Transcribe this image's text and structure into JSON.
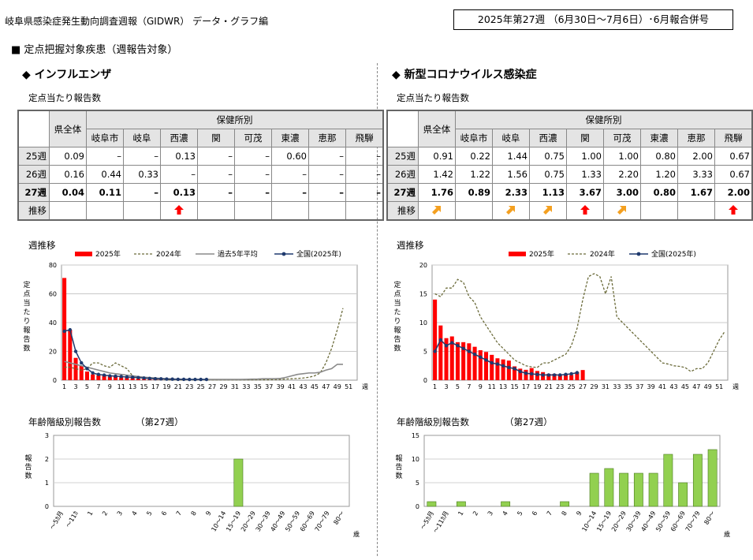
{
  "header": {
    "doc_title": "岐阜県感染症発生動向調査週報（GIDWR） データ・グラフ編",
    "week_label": "2025年第27週 （6月30日～7月6日）･6月報合併号",
    "section_title": "■ 定点把握対象疾患（週報告対象）"
  },
  "influenza": {
    "title": "◆ インフルエンザ",
    "table_title": "定点当たり報告数",
    "table": {
      "header_all": "県全体",
      "header_group": "保健所別",
      "columns": [
        "岐阜市",
        "岐阜",
        "西濃",
        "関",
        "可茂",
        "東濃",
        "恵那",
        "飛騨"
      ],
      "rows": [
        {
          "label": "25週",
          "total": "0.09",
          "values": [
            "–",
            "–",
            "0.13",
            "–",
            "–",
            "0.60",
            "–",
            "–"
          ]
        },
        {
          "label": "26週",
          "total": "0.16",
          "values": [
            "0.44",
            "0.33",
            "–",
            "–",
            "–",
            "–",
            "–",
            "–"
          ]
        },
        {
          "label": "27週",
          "total": "0.04",
          "values": [
            "0.11",
            "–",
            "0.13",
            "–",
            "–",
            "–",
            "–",
            "–"
          ]
        }
      ],
      "trend_label": "推移",
      "trend": [
        "",
        "",
        "",
        "up",
        "",
        "",
        "",
        "",
        ""
      ]
    },
    "weekly_title": "週推移",
    "weekly_chart": {
      "type": "bar",
      "ylabel": "定点当たり報告数",
      "xlabel": "週",
      "ylim": [
        0,
        80
      ],
      "yticks": [
        0,
        20,
        40,
        60,
        80
      ],
      "xticks": [
        1,
        3,
        5,
        7,
        9,
        11,
        13,
        15,
        17,
        19,
        21,
        23,
        25,
        27,
        29,
        31,
        33,
        35,
        37,
        39,
        41,
        43,
        45,
        47,
        49,
        51
      ],
      "legend": [
        "2025年",
        "2024年",
        "過去5年平均",
        "全国(2025年)"
      ],
      "bars_2025": [
        71.0,
        35.0,
        15.5,
        10.0,
        6.0,
        4.0,
        3.5,
        3.0,
        2.5,
        2.5,
        2.0,
        1.8,
        1.5,
        1.0,
        0.8,
        0.6,
        0.5,
        0.4,
        0.3,
        0.2,
        0.2,
        0.2,
        0.2,
        0.1,
        0.16,
        0.04
      ],
      "line_2024": [
        9,
        9,
        8,
        7,
        8,
        12,
        12,
        10,
        9,
        12,
        10,
        8,
        3,
        2,
        1.5,
        1,
        0.8,
        0.5,
        0.3,
        0.2,
        0.2,
        0.2,
        0.2,
        0.2,
        0.2,
        0.2,
        0.2,
        0.2,
        0.2,
        0.2,
        0.2,
        0.2,
        0.2,
        0.2,
        0.3,
        0.3,
        0.3,
        0.4,
        0.5,
        0.8,
        1,
        1.2,
        1.5,
        2,
        3,
        5,
        12,
        22,
        35,
        50
      ],
      "line_avg": [
        13,
        12,
        11,
        10,
        9,
        8,
        7,
        6,
        5,
        4.5,
        4,
        3.5,
        3,
        2.5,
        2,
        1.8,
        1.5,
        1.2,
        1,
        0.8,
        0.7,
        0.6,
        0.5,
        0.5,
        0.5,
        0.5,
        0.5,
        0.5,
        0.5,
        0.5,
        0.5,
        0.5,
        0.6,
        0.7,
        0.8,
        1,
        1,
        1,
        1.2,
        2,
        3,
        4,
        4.5,
        5,
        5,
        5.5,
        7,
        8,
        11,
        11
      ],
      "line_national": [
        34,
        35,
        20,
        12,
        8,
        5,
        4,
        3.5,
        3,
        2.8,
        2.5,
        2.2,
        2,
        1.8,
        1.5,
        1.2,
        1,
        0.9,
        0.8,
        0.7,
        0.6,
        0.6,
        0.5,
        0.5,
        0.5,
        0.5
      ]
    },
    "age_title": "年齢階級別報告数",
    "age_week": "（第27週）",
    "age_chart": {
      "type": "bar",
      "ylabel": "報告数",
      "xlabel": "歳",
      "ylim": [
        0,
        3
      ],
      "yticks": [
        0,
        1,
        2,
        3
      ],
      "categories": [
        "～5ｶ月",
        "～11ｶ",
        "1",
        "2",
        "3",
        "4",
        "5",
        "6",
        "7",
        "8",
        "9",
        "10～14",
        "15～19",
        "20～29",
        "30～39",
        "40～49",
        "50～59",
        "60～69",
        "70～79",
        "80～"
      ],
      "values": [
        0,
        0,
        0,
        0,
        0,
        0,
        0,
        0,
        0,
        0,
        0,
        0,
        2,
        0,
        0,
        0,
        0,
        0,
        0,
        0
      ]
    }
  },
  "covid": {
    "title": "◆ 新型コロナウイルス感染症",
    "table_title": "定点当たり報告数",
    "table": {
      "header_all": "県全体",
      "header_group": "保健所別",
      "columns": [
        "岐阜市",
        "岐阜",
        "西濃",
        "関",
        "可茂",
        "東濃",
        "恵那",
        "飛騨"
      ],
      "rows": [
        {
          "label": "25週",
          "total": "0.91",
          "values": [
            "0.22",
            "1.44",
            "0.75",
            "1.00",
            "1.00",
            "0.80",
            "2.00",
            "0.67"
          ]
        },
        {
          "label": "26週",
          "total": "1.42",
          "values": [
            "1.22",
            "1.56",
            "0.75",
            "1.33",
            "2.20",
            "1.20",
            "3.33",
            "0.67"
          ]
        },
        {
          "label": "27週",
          "total": "1.76",
          "values": [
            "0.89",
            "2.33",
            "1.13",
            "3.67",
            "3.00",
            "0.80",
            "1.67",
            "2.00"
          ]
        }
      ],
      "trend_label": "推移",
      "trend": [
        "slight-up",
        "",
        "slight-up",
        "slight-up",
        "up",
        "slight-up",
        "",
        "",
        "up"
      ]
    },
    "weekly_title": "週推移",
    "weekly_chart": {
      "type": "bar",
      "ylabel": "定点当たり報告数",
      "xlabel": "週",
      "ylim": [
        0,
        20
      ],
      "yticks": [
        0,
        5,
        10,
        15,
        20
      ],
      "xticks": [
        1,
        3,
        5,
        7,
        9,
        11,
        13,
        15,
        17,
        19,
        21,
        23,
        25,
        27,
        29,
        31,
        33,
        35,
        37,
        39,
        41,
        43,
        45,
        47,
        49,
        51
      ],
      "legend": [
        "2025年",
        "2024年",
        "全国(2025年)"
      ],
      "bars_2025": [
        14.0,
        9.5,
        7.3,
        7.6,
        6.6,
        6.6,
        6.4,
        5.8,
        5.2,
        4.9,
        4.4,
        3.8,
        3.6,
        3.4,
        2.4,
        2.0,
        1.8,
        2.1,
        1.6,
        1.4,
        1.1,
        1.1,
        1.0,
        1.0,
        0.9,
        1.42,
        1.76
      ],
      "line_2024": [
        15,
        14.5,
        16,
        16,
        17.5,
        17,
        14.5,
        13.5,
        11,
        9.5,
        8,
        6.5,
        5.5,
        4.5,
        3.5,
        3,
        2.5,
        2.3,
        2.2,
        3,
        3,
        3.5,
        4,
        4.5,
        6,
        9,
        14,
        18,
        18.5,
        18,
        15,
        18,
        11,
        10,
        9,
        8,
        7,
        6,
        5,
        4,
        3,
        2.8,
        2.5,
        2.4,
        2.2,
        1.5,
        2,
        2,
        3,
        5,
        7,
        8.5
      ],
      "line_national": [
        5,
        7,
        6,
        6.5,
        6,
        5.5,
        5,
        4.5,
        4,
        3.5,
        3,
        2.8,
        2.5,
        2.2,
        2,
        1.5,
        1.2,
        1.1,
        1,
        0.9,
        0.9,
        0.9,
        0.9,
        1,
        1.1,
        1.3
      ]
    },
    "age_title": "年齢階級別報告数",
    "age_week": "（第27週）",
    "age_chart": {
      "type": "bar",
      "ylabel": "報告数",
      "xlabel": "歳",
      "ylim": [
        0,
        15
      ],
      "yticks": [
        0,
        5,
        10,
        15
      ],
      "categories": [
        "～5ｶ月",
        "～11ｶ月",
        "1",
        "2",
        "3",
        "4",
        "5",
        "6",
        "7",
        "8",
        "9",
        "10～14",
        "15～19",
        "20～29",
        "30～39",
        "40～49",
        "50～59",
        "60～69",
        "70～79",
        "80～"
      ],
      "values": [
        1,
        0,
        1,
        0,
        0,
        1,
        0,
        0,
        0,
        1,
        0,
        7,
        8,
        7,
        7,
        7,
        11,
        5,
        11,
        12
      ]
    }
  },
  "colors": {
    "bar_2025": "#ff0000",
    "line_2024": "#6b6b3a",
    "line_avg": "#8a8a8a",
    "line_national": "#1f3a6e",
    "age_bar": "#92d050",
    "age_bar_border": "#4a7a1e",
    "arrow_up": "#ff0000",
    "arrow_slight": "#f4a020"
  }
}
